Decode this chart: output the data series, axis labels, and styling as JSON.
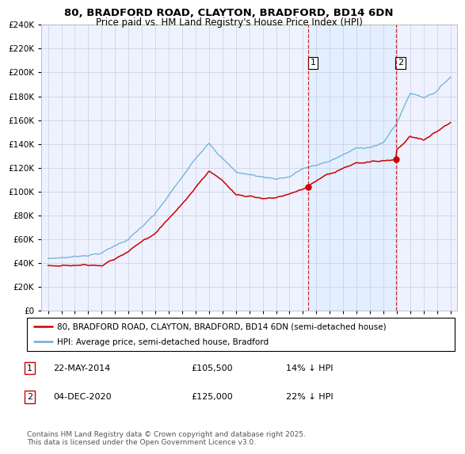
{
  "title_line1": "80, BRADFORD ROAD, CLAYTON, BRADFORD, BD14 6DN",
  "title_line2": "Price paid vs. HM Land Registry's House Price Index (HPI)",
  "legend_line1": "80, BRADFORD ROAD, CLAYTON, BRADFORD, BD14 6DN (semi-detached house)",
  "legend_line2": "HPI: Average price, semi-detached house, Bradford",
  "annotation1_label": "1",
  "annotation1_date": "22-MAY-2014",
  "annotation1_price": "£105,500",
  "annotation1_hpi": "14% ↓ HPI",
  "annotation2_label": "2",
  "annotation2_date": "04-DEC-2020",
  "annotation2_price": "£125,000",
  "annotation2_hpi": "22% ↓ HPI",
  "footer": "Contains HM Land Registry data © Crown copyright and database right 2025.\nThis data is licensed under the Open Government Licence v3.0.",
  "hpi_color": "#6baed6",
  "hpi_fill_color": "#ddeeff",
  "price_color": "#cc0000",
  "vline_color": "#cc0000",
  "vline1_x": 2014.39,
  "vline2_x": 2020.92,
  "sale1_price": 105500,
  "sale2_price": 125000,
  "ylim_min": 0,
  "ylim_max": 240000,
  "xlim_min": 1994.5,
  "xlim_max": 2025.5,
  "background_color": "#f0f4ff",
  "plot_bg_color": "#eef2ff",
  "grid_color": "#ccccdd"
}
